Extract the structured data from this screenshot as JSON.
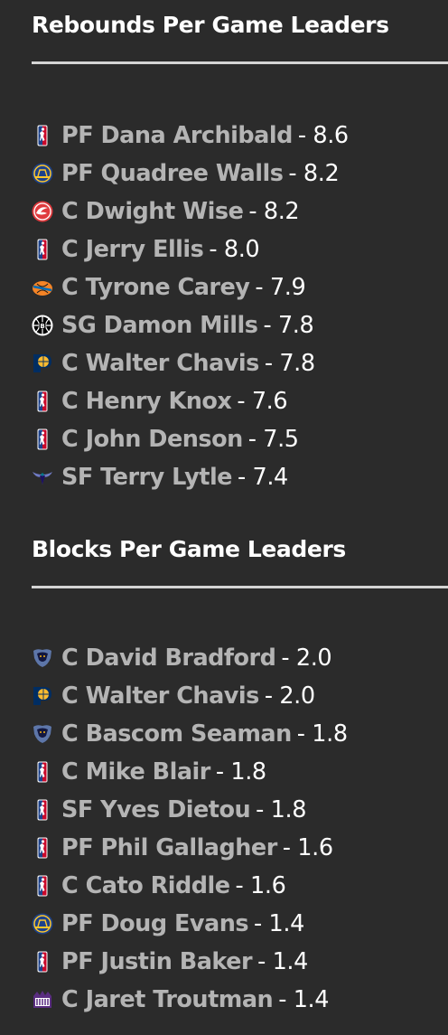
{
  "rebounds": {
    "title": "Rebounds Per Game Leaders",
    "leaders": [
      {
        "icon": "nba-logo-icon",
        "player": "PF Dana Archibald",
        "value": "- 8.6"
      },
      {
        "icon": "warriors-logo-icon",
        "player": "PF Quadree Walls",
        "value": "- 8.2"
      },
      {
        "icon": "hawks-logo-icon",
        "player": "C Dwight Wise",
        "value": "- 8.2"
      },
      {
        "icon": "nba-logo-icon",
        "player": "C Jerry Ellis",
        "value": "- 8.0"
      },
      {
        "icon": "knicks-logo-icon",
        "player": "C Tyrone Carey",
        "value": "- 7.9"
      },
      {
        "icon": "nets-logo-icon",
        "player": "SG Damon Mills",
        "value": "- 7.8"
      },
      {
        "icon": "pacers-logo-icon",
        "player": "C Walter Chavis",
        "value": "- 7.8"
      },
      {
        "icon": "nba-logo-icon",
        "player": "C Henry Knox",
        "value": "- 7.6"
      },
      {
        "icon": "nba-logo-icon",
        "player": "C John Denson",
        "value": "- 7.5"
      },
      {
        "icon": "hornets-logo-icon",
        "player": "SF Terry Lytle",
        "value": "- 7.4"
      }
    ]
  },
  "blocks": {
    "title": "Blocks Per Game Leaders",
    "leaders": [
      {
        "icon": "grizzlies-logo-icon",
        "player": "C David Bradford",
        "value": "- 2.0"
      },
      {
        "icon": "pacers-logo-icon",
        "player": "C Walter Chavis",
        "value": "- 2.0"
      },
      {
        "icon": "grizzlies-logo-icon",
        "player": "C Bascom Seaman",
        "value": "- 1.8"
      },
      {
        "icon": "nba-logo-icon",
        "player": "C Mike Blair",
        "value": "- 1.8"
      },
      {
        "icon": "nba-logo-icon",
        "player": "SF Yves Dietou",
        "value": "- 1.8"
      },
      {
        "icon": "nba-logo-icon",
        "player": "PF Phil Gallagher",
        "value": "- 1.6"
      },
      {
        "icon": "nba-logo-icon",
        "player": "C Cato Riddle",
        "value": "- 1.6"
      },
      {
        "icon": "warriors-logo-icon",
        "player": "PF Doug Evans",
        "value": "- 1.4"
      },
      {
        "icon": "nba-logo-icon",
        "player": "PF Justin Baker",
        "value": "- 1.4"
      },
      {
        "icon": "kings-logo-icon",
        "player": "C Jaret Troutman",
        "value": "- 1.4"
      }
    ]
  }
}
